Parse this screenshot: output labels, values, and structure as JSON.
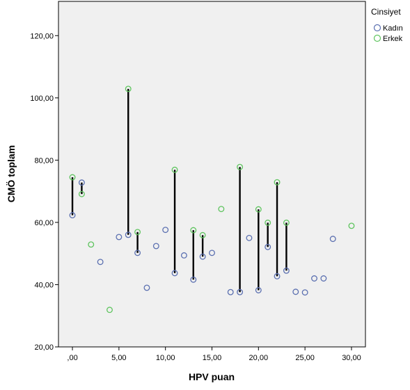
{
  "chart_data": {
    "type": "scatter",
    "xlabel": "HPV puan",
    "ylabel": "CMÖ toplam",
    "xlim": [
      -1.5,
      31.5
    ],
    "ylim": [
      20,
      131
    ],
    "x_ticks": [
      0,
      5,
      10,
      15,
      20,
      25,
      30
    ],
    "x_tick_labels": [
      ",00",
      "5,00",
      "10,00",
      "15,00",
      "20,00",
      "25,00",
      "30,00"
    ],
    "y_ticks": [
      20,
      40,
      60,
      80,
      100,
      120
    ],
    "y_tick_labels": [
      "20,00",
      "40,00",
      "60,00",
      "80,00",
      "100,00",
      "120,00"
    ],
    "plot_background": "#f0f0f0",
    "grid": false,
    "legend": {
      "title": "Cinsiyet",
      "placement": "right"
    },
    "series": [
      {
        "name": "Kadın",
        "color": "#5a6fb0",
        "marker": "open-circle",
        "points": [
          [
            0,
            62.3
          ],
          [
            1,
            72.8
          ],
          [
            3,
            47.3
          ],
          [
            5,
            55.3
          ],
          [
            6,
            56.0
          ],
          [
            7,
            50.2
          ],
          [
            8,
            39.0
          ],
          [
            9,
            52.4
          ],
          [
            10,
            57.6
          ],
          [
            11,
            43.7
          ],
          [
            12,
            49.4
          ],
          [
            13,
            41.6
          ],
          [
            14,
            49.0
          ],
          [
            15,
            50.2
          ],
          [
            17,
            37.6
          ],
          [
            18,
            37.6
          ],
          [
            19,
            55.0
          ],
          [
            20,
            38.2
          ],
          [
            21,
            52.1
          ],
          [
            22,
            42.7
          ],
          [
            23,
            44.5
          ],
          [
            24,
            37.7
          ],
          [
            25,
            37.5
          ],
          [
            26,
            42.0
          ],
          [
            27,
            42.0
          ],
          [
            28,
            54.7
          ]
        ]
      },
      {
        "name": "Erkek",
        "color": "#5ec45e",
        "marker": "open-circle",
        "points": [
          [
            0,
            74.5
          ],
          [
            1,
            69.1
          ],
          [
            2,
            52.9
          ],
          [
            4,
            31.9
          ],
          [
            6,
            102.9
          ],
          [
            7,
            56.9
          ],
          [
            11,
            76.9
          ],
          [
            13,
            57.5
          ],
          [
            14,
            55.9
          ],
          [
            16,
            64.3
          ],
          [
            18,
            77.8
          ],
          [
            20,
            64.2
          ],
          [
            21,
            59.9
          ],
          [
            22,
            72.9
          ],
          [
            23,
            59.9
          ],
          [
            30,
            58.9
          ]
        ]
      }
    ],
    "drop_lines": {
      "color": "#000000",
      "x": [
        0,
        1,
        6,
        7,
        11,
        13,
        14,
        18,
        20,
        21,
        22,
        23
      ]
    }
  }
}
